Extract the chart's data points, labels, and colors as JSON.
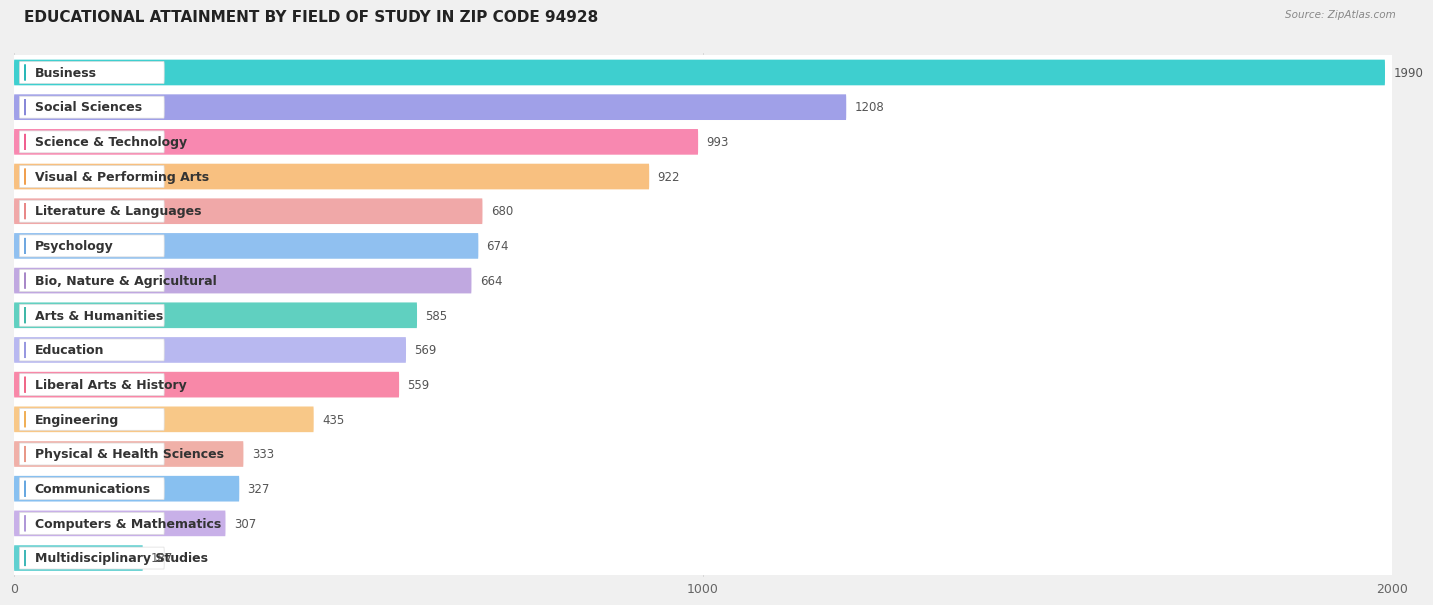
{
  "title": "EDUCATIONAL ATTAINMENT BY FIELD OF STUDY IN ZIP CODE 94928",
  "source": "Source: ZipAtlas.com",
  "categories": [
    "Business",
    "Social Sciences",
    "Science & Technology",
    "Visual & Performing Arts",
    "Literature & Languages",
    "Psychology",
    "Bio, Nature & Agricultural",
    "Arts & Humanities",
    "Education",
    "Liberal Arts & History",
    "Engineering",
    "Physical & Health Sciences",
    "Communications",
    "Computers & Mathematics",
    "Multidisciplinary Studies"
  ],
  "values": [
    1990,
    1208,
    993,
    922,
    680,
    674,
    664,
    585,
    569,
    559,
    435,
    333,
    327,
    307,
    187
  ],
  "bar_colors": [
    "#3ecfcf",
    "#a0a0e8",
    "#f888b0",
    "#f8c080",
    "#f0a8a8",
    "#90c0f0",
    "#c0a8e0",
    "#60d0c0",
    "#b8b8f0",
    "#f888a8",
    "#f8c888",
    "#f0b0a8",
    "#88c0f0",
    "#c8b0e8",
    "#60d0d0"
  ],
  "dot_colors": [
    "#2ab8b8",
    "#8888d8",
    "#f06090",
    "#f0a050",
    "#e88888",
    "#70a8e0",
    "#a888c8",
    "#40b8a8",
    "#9898e0",
    "#f06888",
    "#f0b058",
    "#e89888",
    "#68a8e0",
    "#b098d8",
    "#40b8b8"
  ],
  "xlim": [
    0,
    2000
  ],
  "xticks": [
    0,
    1000,
    2000
  ],
  "background_color": "#f0f0f0",
  "bar_background": "#ffffff",
  "row_bg": "#f8f8f8",
  "title_fontsize": 11,
  "label_fontsize": 9,
  "value_fontsize": 8.5
}
